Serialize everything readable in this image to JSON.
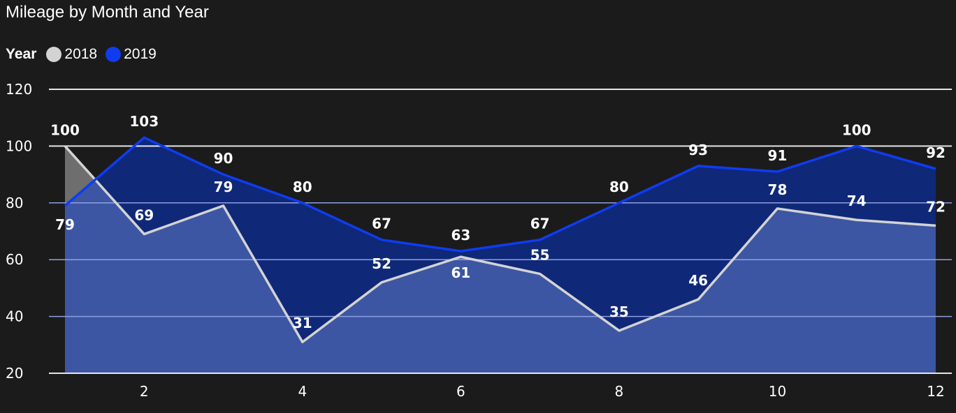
{
  "title": "Mileage by Month and Year",
  "legend": {
    "title": "Year"
  },
  "colors": {
    "background": "#1b1b1b",
    "series_2018_line": "#d3d3d3",
    "series_2018_area": "#6e6e6e",
    "series_2019_line": "#0f3cf0",
    "series_2019_area": "#0f2878",
    "overlap_area": "#3c56a3",
    "gridline": "#8fa0e0"
  },
  "chart_data": {
    "type": "area",
    "title": "Mileage by Month and Year",
    "legend_title": "Year",
    "legend_position": "top-left",
    "x": [
      1,
      2,
      3,
      4,
      5,
      6,
      7,
      8,
      9,
      10,
      11,
      12
    ],
    "x_ticks": [
      2,
      4,
      6,
      8,
      10,
      12
    ],
    "y_ticks": [
      20,
      40,
      60,
      80,
      100,
      120
    ],
    "ylim": [
      20,
      120
    ],
    "xlim": [
      1,
      12
    ],
    "grid": true,
    "series": [
      {
        "name": "2018",
        "values": [
          100,
          69,
          79,
          31,
          52,
          61,
          55,
          35,
          46,
          78,
          74,
          72
        ]
      },
      {
        "name": "2019",
        "values": [
          79,
          103,
          90,
          80,
          67,
          63,
          67,
          80,
          93,
          91,
          100,
          92
        ]
      }
    ]
  }
}
